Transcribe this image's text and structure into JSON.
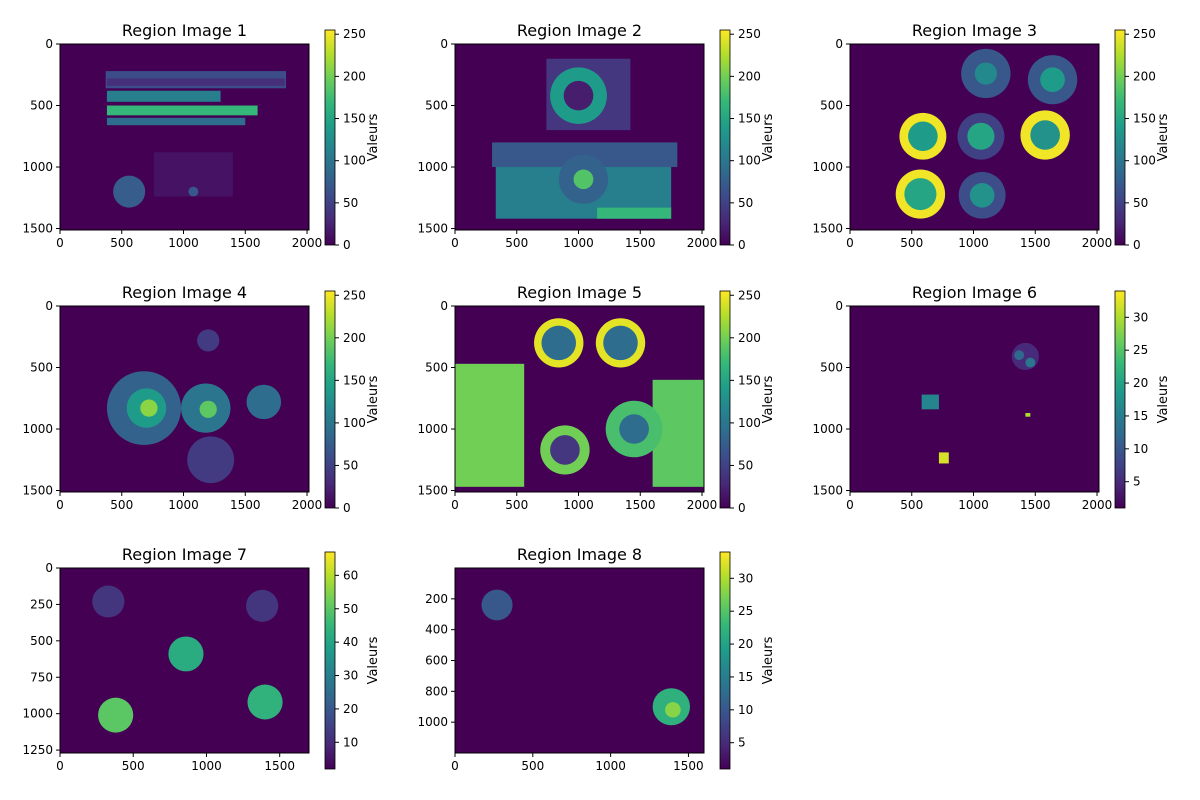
{
  "colors": {
    "viridis": [
      "#440154",
      "#482878",
      "#3e4989",
      "#31688e",
      "#26828e",
      "#1f9e89",
      "#35b779",
      "#6ece58",
      "#b5de2b",
      "#fde725"
    ]
  },
  "chart_data": [
    {
      "type": "heatmap",
      "title": "Region Image 1",
      "xticks": [
        0,
        500,
        1000,
        1500,
        2000
      ],
      "yticks": [
        0,
        500,
        1000,
        1500
      ],
      "xlim": [
        0,
        2016
      ],
      "ylim": [
        1512,
        0
      ],
      "colorbar": {
        "label": "Valeurs",
        "ticks": [
          0,
          50,
          100,
          150,
          200,
          250
        ],
        "range": [
          0,
          255
        ]
      },
      "regions": [
        {
          "kind": "rect",
          "x": [
            370,
            1830
          ],
          "y": [
            220,
            360
          ],
          "value": 60
        },
        {
          "kind": "rect",
          "x": [
            380,
            1820
          ],
          "y": [
            280,
            340
          ],
          "value": 35
        },
        {
          "kind": "rect",
          "x": [
            380,
            1300
          ],
          "y": [
            380,
            470
          ],
          "value": 110
        },
        {
          "kind": "rect",
          "x": [
            380,
            1600
          ],
          "y": [
            500,
            580
          ],
          "value": 170
        },
        {
          "kind": "rect",
          "x": [
            380,
            1500
          ],
          "y": [
            600,
            660
          ],
          "value": 90
        },
        {
          "kind": "rect",
          "x": [
            760,
            1400
          ],
          "y": [
            880,
            1240
          ],
          "value": 12
        },
        {
          "kind": "circle",
          "cx": 560,
          "cy": 1200,
          "r": 130,
          "value": 75
        },
        {
          "kind": "circle",
          "cx": 1080,
          "cy": 1200,
          "r": 40,
          "value": 70
        }
      ]
    },
    {
      "type": "heatmap",
      "title": "Region Image 2",
      "xticks": [
        0,
        500,
        1000,
        1500,
        2000
      ],
      "yticks": [
        0,
        500,
        1000,
        1500
      ],
      "xlim": [
        0,
        2016
      ],
      "ylim": [
        1512,
        0
      ],
      "colorbar": {
        "label": "Valeurs",
        "ticks": [
          0,
          50,
          100,
          150,
          200,
          250
        ],
        "range": [
          0,
          255
        ]
      },
      "regions": [
        {
          "kind": "rect",
          "x": [
            740,
            1420
          ],
          "y": [
            120,
            700
          ],
          "value": 40
        },
        {
          "kind": "circle",
          "cx": 1000,
          "cy": 420,
          "r": 230,
          "value": 140
        },
        {
          "kind": "circle",
          "cx": 1000,
          "cy": 420,
          "r": 120,
          "value": 20
        },
        {
          "kind": "rect",
          "x": [
            300,
            1800
          ],
          "y": [
            800,
            1000
          ],
          "value": 70
        },
        {
          "kind": "rect",
          "x": [
            330,
            1750
          ],
          "y": [
            1000,
            1420
          ],
          "value": 110
        },
        {
          "kind": "rect",
          "x": [
            1150,
            1750
          ],
          "y": [
            1330,
            1420
          ],
          "value": 170
        },
        {
          "kind": "circle",
          "cx": 1040,
          "cy": 1100,
          "r": 200,
          "value": 80
        },
        {
          "kind": "circle",
          "cx": 1040,
          "cy": 1100,
          "r": 80,
          "value": 185
        }
      ]
    },
    {
      "type": "heatmap",
      "title": "Region Image 3",
      "xticks": [
        0,
        500,
        1000,
        1500,
        2000
      ],
      "yticks": [
        0,
        500,
        1000,
        1500
      ],
      "xlim": [
        0,
        2016
      ],
      "ylim": [
        1512,
        0
      ],
      "colorbar": {
        "label": "Valeurs",
        "ticks": [
          0,
          50,
          100,
          150,
          200,
          250
        ],
        "range": [
          0,
          255
        ]
      },
      "regions": [
        {
          "kind": "circle",
          "cx": 1100,
          "cy": 240,
          "r": 200,
          "value": 70
        },
        {
          "kind": "circle",
          "cx": 1100,
          "cy": 240,
          "r": 90,
          "value": 120
        },
        {
          "kind": "circle",
          "cx": 1640,
          "cy": 290,
          "r": 200,
          "value": 70
        },
        {
          "kind": "circle",
          "cx": 1640,
          "cy": 290,
          "r": 100,
          "value": 140
        },
        {
          "kind": "circle",
          "cx": 590,
          "cy": 750,
          "r": 190,
          "value": 250
        },
        {
          "kind": "circle",
          "cx": 590,
          "cy": 750,
          "r": 120,
          "value": 140
        },
        {
          "kind": "circle",
          "cx": 1060,
          "cy": 750,
          "r": 190,
          "value": 50
        },
        {
          "kind": "circle",
          "cx": 1060,
          "cy": 750,
          "r": 110,
          "value": 150
        },
        {
          "kind": "circle",
          "cx": 1580,
          "cy": 740,
          "r": 200,
          "value": 250
        },
        {
          "kind": "circle",
          "cx": 1580,
          "cy": 740,
          "r": 120,
          "value": 130
        },
        {
          "kind": "circle",
          "cx": 570,
          "cy": 1220,
          "r": 200,
          "value": 250
        },
        {
          "kind": "circle",
          "cx": 570,
          "cy": 1220,
          "r": 130,
          "value": 150
        },
        {
          "kind": "circle",
          "cx": 1070,
          "cy": 1230,
          "r": 190,
          "value": 60
        },
        {
          "kind": "circle",
          "cx": 1070,
          "cy": 1230,
          "r": 100,
          "value": 130
        }
      ]
    },
    {
      "type": "heatmap",
      "title": "Region Image 4",
      "xticks": [
        0,
        500,
        1000,
        1500,
        2000
      ],
      "yticks": [
        0,
        500,
        1000,
        1500
      ],
      "xlim": [
        0,
        2016
      ],
      "ylim": [
        1512,
        0
      ],
      "colorbar": {
        "label": "Valeurs",
        "ticks": [
          0,
          50,
          100,
          150,
          200,
          250
        ],
        "range": [
          0,
          255
        ]
      },
      "regions": [
        {
          "kind": "circle",
          "cx": 1200,
          "cy": 280,
          "r": 90,
          "value": 45
        },
        {
          "kind": "circle",
          "cx": 680,
          "cy": 830,
          "r": 300,
          "value": 80
        },
        {
          "kind": "circle",
          "cx": 700,
          "cy": 830,
          "r": 160,
          "value": 140
        },
        {
          "kind": "circle",
          "cx": 720,
          "cy": 830,
          "r": 70,
          "value": 210
        },
        {
          "kind": "circle",
          "cx": 1180,
          "cy": 830,
          "r": 200,
          "value": 100
        },
        {
          "kind": "circle",
          "cx": 1200,
          "cy": 840,
          "r": 70,
          "value": 190
        },
        {
          "kind": "circle",
          "cx": 1650,
          "cy": 780,
          "r": 140,
          "value": 90
        },
        {
          "kind": "circle",
          "cx": 1220,
          "cy": 1250,
          "r": 190,
          "value": 45
        }
      ]
    },
    {
      "type": "heatmap",
      "title": "Region Image 5",
      "xticks": [
        0,
        500,
        1000,
        1500,
        2000
      ],
      "yticks": [
        0,
        500,
        1000,
        1500
      ],
      "xlim": [
        0,
        2016
      ],
      "ylim": [
        1512,
        0
      ],
      "colorbar": {
        "label": "Valeurs",
        "ticks": [
          0,
          50,
          100,
          150,
          200,
          250
        ],
        "range": [
          0,
          255
        ]
      },
      "regions": [
        {
          "kind": "rect",
          "x": [
            0,
            560
          ],
          "y": [
            470,
            1470
          ],
          "value": 200
        },
        {
          "kind": "rect",
          "x": [
            1600,
            2016
          ],
          "y": [
            600,
            1470
          ],
          "value": 190
        },
        {
          "kind": "circle",
          "cx": 840,
          "cy": 300,
          "r": 200,
          "value": 245
        },
        {
          "kind": "circle",
          "cx": 840,
          "cy": 300,
          "r": 140,
          "value": 90
        },
        {
          "kind": "circle",
          "cx": 1340,
          "cy": 300,
          "r": 200,
          "value": 245
        },
        {
          "kind": "circle",
          "cx": 1340,
          "cy": 300,
          "r": 140,
          "value": 90
        },
        {
          "kind": "circle",
          "cx": 1450,
          "cy": 1000,
          "r": 230,
          "value": 180
        },
        {
          "kind": "circle",
          "cx": 1450,
          "cy": 1000,
          "r": 120,
          "value": 90
        },
        {
          "kind": "circle",
          "cx": 890,
          "cy": 1170,
          "r": 200,
          "value": 200
        },
        {
          "kind": "circle",
          "cx": 890,
          "cy": 1170,
          "r": 120,
          "value": 40
        }
      ]
    },
    {
      "type": "heatmap",
      "title": "Region Image 6",
      "xticks": [
        0,
        500,
        1000,
        1500,
        2000
      ],
      "yticks": [
        0,
        500,
        1000,
        1500
      ],
      "xlim": [
        0,
        2016
      ],
      "ylim": [
        1512,
        0
      ],
      "colorbar": {
        "label": "Valeurs",
        "ticks": [
          5,
          10,
          15,
          20,
          25,
          30
        ],
        "range": [
          1,
          34
        ]
      },
      "regions": [
        {
          "kind": "circle",
          "cx": 1420,
          "cy": 410,
          "r": 110,
          "value": 5
        },
        {
          "kind": "circle",
          "cx": 1370,
          "cy": 400,
          "r": 40,
          "value": 12
        },
        {
          "kind": "circle",
          "cx": 1460,
          "cy": 460,
          "r": 40,
          "value": 14
        },
        {
          "kind": "rect",
          "x": [
            580,
            720
          ],
          "y": [
            720,
            840
          ],
          "value": 16
        },
        {
          "kind": "rect",
          "x": [
            1420,
            1460
          ],
          "y": [
            870,
            900
          ],
          "value": 30
        },
        {
          "kind": "rect",
          "x": [
            720,
            800
          ],
          "y": [
            1190,
            1280
          ],
          "value": 32
        }
      ]
    },
    {
      "type": "heatmap",
      "title": "Region Image 7",
      "xticks": [
        0,
        500,
        1000,
        1500
      ],
      "yticks": [
        0,
        250,
        500,
        750,
        1000,
        1250
      ],
      "xlim": [
        0,
        1700
      ],
      "ylim": [
        1270,
        0
      ],
      "colorbar": {
        "label": "Valeurs",
        "ticks": [
          10,
          20,
          30,
          40,
          50,
          60
        ],
        "range": [
          2,
          67
        ]
      },
      "regions": [
        {
          "kind": "circle",
          "cx": 330,
          "cy": 230,
          "r": 110,
          "value": 12
        },
        {
          "kind": "circle",
          "cx": 1380,
          "cy": 260,
          "r": 110,
          "value": 12
        },
        {
          "kind": "circle",
          "cx": 860,
          "cy": 590,
          "r": 120,
          "value": 42
        },
        {
          "kind": "circle",
          "cx": 380,
          "cy": 1010,
          "r": 120,
          "value": 50
        },
        {
          "kind": "circle",
          "cx": 1400,
          "cy": 920,
          "r": 120,
          "value": 44
        }
      ]
    },
    {
      "type": "heatmap",
      "title": "Region Image 8",
      "xticks": [
        0,
        500,
        1000,
        1500
      ],
      "yticks": [
        200,
        400,
        600,
        800,
        1000
      ],
      "xlim": [
        0,
        1600
      ],
      "ylim": [
        1200,
        0
      ],
      "colorbar": {
        "label": "Valeurs",
        "ticks": [
          5,
          10,
          15,
          20,
          25,
          30
        ],
        "range": [
          1,
          34
        ]
      },
      "regions": [
        {
          "kind": "circle",
          "cx": 270,
          "cy": 240,
          "r": 100,
          "value": 10
        },
        {
          "kind": "circle",
          "cx": 1390,
          "cy": 900,
          "r": 120,
          "value": 22
        },
        {
          "kind": "circle",
          "cx": 1400,
          "cy": 920,
          "r": 50,
          "value": 28
        }
      ]
    }
  ]
}
